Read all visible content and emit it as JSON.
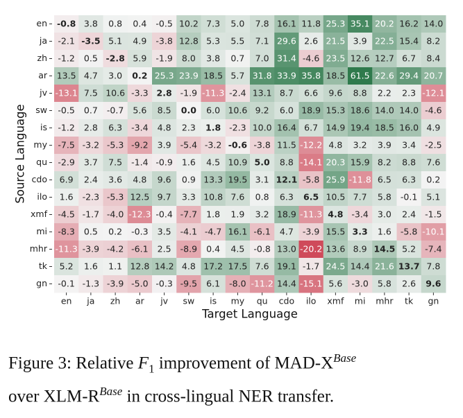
{
  "chart_data": {
    "type": "heatmap",
    "x_label": "Target Language",
    "y_label": "Source Language",
    "x_categories": [
      "en",
      "ja",
      "zh",
      "ar",
      "jv",
      "sw",
      "is",
      "my",
      "qu",
      "cdo",
      "ilo",
      "xmf",
      "mi",
      "mhr",
      "tk",
      "gn"
    ],
    "y_categories": [
      "en",
      "ja",
      "zh",
      "ar",
      "jv",
      "sw",
      "is",
      "my",
      "qu",
      "cdo",
      "ilo",
      "xmf",
      "mi",
      "mhr",
      "tk",
      "gn"
    ],
    "values": [
      [
        -0.8,
        3.8,
        0.8,
        0.4,
        -0.5,
        10.2,
        7.3,
        5.0,
        7.8,
        16.1,
        11.8,
        25.3,
        35.1,
        20.2,
        16.2,
        14.0
      ],
      [
        -2.1,
        -3.5,
        5.1,
        4.9,
        -3.8,
        12.8,
        5.3,
        5.5,
        7.1,
        29.6,
        2.6,
        21.5,
        3.9,
        22.5,
        15.4,
        8.2
      ],
      [
        -1.2,
        0.5,
        -2.8,
        5.9,
        -1.9,
        8.0,
        3.8,
        0.7,
        7.0,
        31.4,
        -4.6,
        23.5,
        12.6,
        12.7,
        6.7,
        8.4
      ],
      [
        13.5,
        4.7,
        3.0,
        0.2,
        25.3,
        23.9,
        18.5,
        5.7,
        31.8,
        33.9,
        35.8,
        18.5,
        61.5,
        22.6,
        29.4,
        20.7
      ],
      [
        -13.1,
        7.5,
        10.6,
        -3.3,
        2.8,
        -1.9,
        -11.3,
        -2.4,
        13.1,
        8.7,
        6.6,
        9.6,
        8.8,
        2.2,
        2.3,
        -12.1
      ],
      [
        -0.5,
        0.7,
        -0.7,
        5.6,
        8.5,
        0.0,
        6.0,
        10.6,
        9.2,
        6.0,
        18.9,
        15.3,
        18.6,
        14.0,
        14.0,
        -4.6
      ],
      [
        -1.2,
        2.8,
        6.3,
        -3.4,
        4.8,
        2.3,
        1.8,
        -2.3,
        10.0,
        16.4,
        6.7,
        14.9,
        19.4,
        18.5,
        16.0,
        4.9
      ],
      [
        -7.5,
        -3.2,
        -5.3,
        -9.2,
        3.9,
        -5.4,
        -3.2,
        -0.6,
        -3.8,
        11.5,
        -12.2,
        4.8,
        3.2,
        3.9,
        3.4,
        -2.5
      ],
      [
        -2.9,
        3.7,
        7.5,
        -1.4,
        -0.9,
        1.6,
        4.5,
        10.9,
        5.0,
        8.8,
        -14.1,
        20.3,
        15.9,
        8.2,
        8.8,
        7.6
      ],
      [
        6.9,
        2.4,
        3.6,
        4.8,
        9.6,
        0.9,
        13.3,
        19.5,
        3.1,
        12.1,
        -5.8,
        25.9,
        -11.8,
        6.5,
        6.3,
        0.2
      ],
      [
        1.6,
        -2.3,
        -5.3,
        12.5,
        9.7,
        3.3,
        10.8,
        7.6,
        0.8,
        6.3,
        6.5,
        10.5,
        7.7,
        5.8,
        -0.1,
        5.1
      ],
      [
        -4.5,
        -1.7,
        -4.0,
        -12.3,
        -0.4,
        -7.7,
        1.8,
        1.9,
        3.2,
        18.9,
        -11.3,
        4.8,
        -3.4,
        3.0,
        2.4,
        -1.5
      ],
      [
        -8.3,
        0.5,
        0.2,
        -0.3,
        3.5,
        -4.1,
        -4.7,
        16.1,
        -6.1,
        4.7,
        -3.9,
        15.5,
        3.3,
        1.6,
        -5.8,
        -10.1
      ],
      [
        -11.3,
        -3.9,
        -4.2,
        -6.1,
        2.5,
        -8.9,
        0.4,
        4.5,
        -0.8,
        13.0,
        -20.2,
        13.6,
        8.9,
        14.5,
        5.2,
        -7.4
      ],
      [
        5.2,
        1.6,
        1.1,
        12.8,
        14.2,
        4.8,
        17.2,
        17.5,
        7.6,
        19.1,
        -1.7,
        24.5,
        14.4,
        21.6,
        13.7,
        7.8
      ],
      [
        -0.1,
        -1.3,
        -3.9,
        -5.0,
        -0.3,
        -9.5,
        6.1,
        -8.0,
        -11.2,
        14.4,
        -15.1,
        5.6,
        -3.0,
        5.8,
        2.6,
        9.6
      ]
    ],
    "value_labels": [
      [
        "-0.8",
        "3.8",
        "0.8",
        "0.4",
        "-0.5",
        "10.2",
        "7.3",
        "5.0",
        "7.8",
        "16.1",
        "11.8",
        "25.3",
        "35.1",
        "20.2",
        "16.2",
        "14.0"
      ],
      [
        "-2.1",
        "-3.5",
        "5.1",
        "4.9",
        "-3.8",
        "12.8",
        "5.3",
        "5.5",
        "7.1",
        "29.6",
        "2.6",
        "21.5",
        "3.9",
        "22.5",
        "15.4",
        "8.2"
      ],
      [
        "-1.2",
        "0.5",
        "-2.8",
        "5.9",
        "-1.9",
        "8.0",
        "3.8",
        "0.7",
        "7.0",
        "31.4",
        "-4.6",
        "23.5",
        "12.6",
        "12.7",
        "6.7",
        "8.4"
      ],
      [
        "13.5",
        "4.7",
        "3.0",
        "0.2",
        "25.3",
        "23.9",
        "18.5",
        "5.7",
        "31.8",
        "33.9",
        "35.8",
        "18.5",
        "61.5",
        "22.6",
        "29.4",
        "20.7"
      ],
      [
        "-13.1",
        "7.5",
        "10.6",
        "-3.3",
        "2.8",
        "-1.9",
        "-11.3",
        "-2.4",
        "13.1",
        "8.7",
        "6.6",
        "9.6",
        "8.8",
        "2.2",
        "2.3",
        "-12.1"
      ],
      [
        "-0.5",
        "0.7",
        "-0.7",
        "5.6",
        "8.5",
        "0.0",
        "6.0",
        "10.6",
        "9.2",
        "6.0",
        "18.9",
        "15.3",
        "18.6",
        "14.0",
        "14.0",
        "-4.6"
      ],
      [
        "-1.2",
        "2.8",
        "6.3",
        "-3.4",
        "4.8",
        "2.3",
        "1.8",
        "-2.3",
        "10.0",
        "16.4",
        "6.7",
        "14.9",
        "19.4",
        "18.5",
        "16.0",
        "4.9"
      ],
      [
        "-7.5",
        "-3.2",
        "-5.3",
        "-9.2",
        "3.9",
        "-5.4",
        "-3.2",
        "-0.6",
        "-3.8",
        "11.5",
        "-12.2",
        "4.8",
        "3.2",
        "3.9",
        "3.4",
        "-2.5"
      ],
      [
        "-2.9",
        "3.7",
        "7.5",
        "-1.4",
        "-0.9",
        "1.6",
        "4.5",
        "10.9",
        "5.0",
        "8.8",
        "-14.1",
        "20.3",
        "15.9",
        "8.2",
        "8.8",
        "7.6"
      ],
      [
        "6.9",
        "2.4",
        "3.6",
        "4.8",
        "9.6",
        "0.9",
        "13.3",
        "19.5",
        "3.1",
        "12.1",
        "-5.8",
        "25.9",
        "-11.8",
        "6.5",
        "6.3",
        "0.2"
      ],
      [
        "1.6",
        "-2.3",
        "-5.3",
        "12.5",
        "9.7",
        "3.3",
        "10.8",
        "7.6",
        "0.8",
        "6.3",
        "6.5",
        "10.5",
        "7.7",
        "5.8",
        "-0.1",
        "5.1"
      ],
      [
        "-4.5",
        "-1.7",
        "-4.0",
        "-12.3",
        "-0.4",
        "-7.7",
        "1.8",
        "1.9",
        "3.2",
        "18.9",
        "-11.3",
        "4.8",
        "-3.4",
        "3.0",
        "2.4",
        "-1.5"
      ],
      [
        "-8.3",
        "0.5",
        "0.2",
        "-0.3",
        "3.5",
        "-4.1",
        "-4.7",
        "16.1",
        "-6.1",
        "4.7",
        "-3.9",
        "15.5",
        "3.3",
        "1.6",
        "-5.8",
        "-10.1"
      ],
      [
        "-11.3",
        "-3.9",
        "-4.2",
        "-6.1",
        "2.5",
        "-8.9",
        "0.4",
        "4.5",
        "-0.8",
        "13.0",
        "-20.2",
        "13.6",
        "8.9",
        "14.5",
        "5.2",
        "-7.4"
      ],
      [
        "5.2",
        "1.6",
        "1.1",
        "12.8",
        "14.2",
        "4.8",
        "17.2",
        "17.5",
        "7.6",
        "19.1",
        "-1.7",
        "24.5",
        "14.4",
        "21.6",
        "13.7",
        "7.8"
      ],
      [
        "-0.1",
        "-1.3",
        "-3.9",
        "-5.0",
        "-0.3",
        "-9.5",
        "6.1",
        "-8.0",
        "-11.2",
        "14.4",
        "-15.1",
        "5.6",
        "-3.0",
        "5.8",
        "2.6",
        "9.6"
      ]
    ],
    "bold_diagonal": true,
    "clim": [
      -20,
      40
    ],
    "colors": {
      "negative": "#cf4a5a",
      "zero": "#f4f4f4",
      "positive": "#2f7a4c"
    }
  },
  "caption": {
    "line1": [
      "Figure 3:  Relative ",
      "F",
      "1",
      " improvement of MAD-X",
      "Base"
    ],
    "line2": [
      "over XLM-R",
      "Base",
      " in cross-lingual NER transfer."
    ]
  }
}
